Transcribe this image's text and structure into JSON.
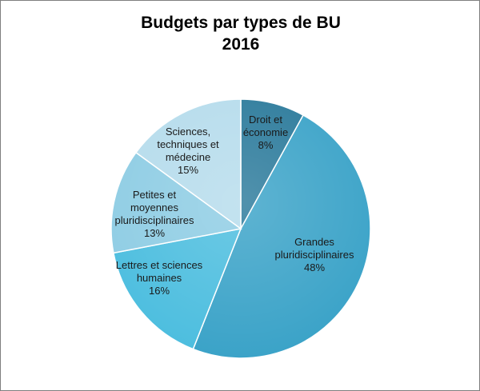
{
  "chart_data": {
    "type": "pie",
    "title_lines": [
      "Budgets par types de BU",
      "2016"
    ],
    "slices": [
      {
        "label_lines": [
          "Droit et",
          "économie",
          "8%"
        ],
        "value": 8,
        "color": "#2b7a9b"
      },
      {
        "label_lines": [
          "Grandes",
          "pluridisciplinaires",
          "48%"
        ],
        "value": 48,
        "color": "#3ba3c8"
      },
      {
        "label_lines": [
          "Lettres et sciences",
          "humaines",
          "16%"
        ],
        "value": 16,
        "color": "#4dbedf"
      },
      {
        "label_lines": [
          "Petites et",
          "moyennes",
          "pluridisciplinaires",
          "13%"
        ],
        "value": 13,
        "color": "#8fcde4"
      },
      {
        "label_lines": [
          "Sciences,",
          "techniques et",
          "médecine",
          "15%"
        ],
        "value": 15,
        "color": "#b6dcec"
      }
    ]
  }
}
